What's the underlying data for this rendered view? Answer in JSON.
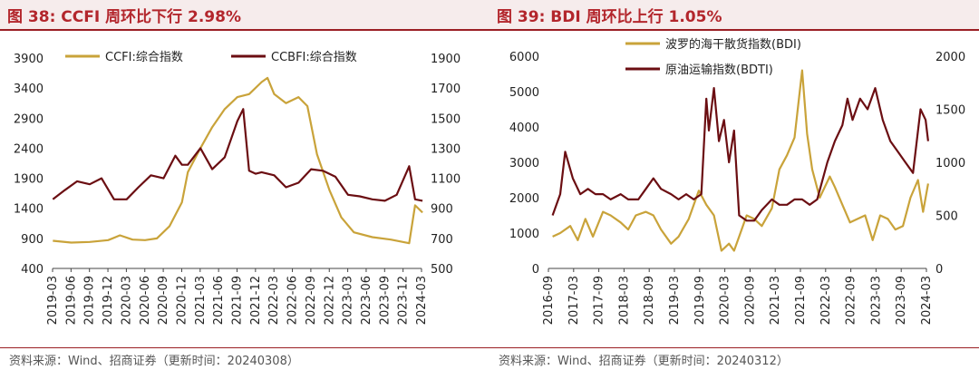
{
  "left_panel": {
    "title": "图 38:  CCFI 周环比下行 2.98%",
    "source": "资料来源：Wind、招商证券（更新时间：20240308）"
  },
  "right_panel": {
    "title": "图 39:  BDI 周环比上行 1.05%",
    "source": "资料来源：Wind、招商证券（更新时间：20240312）"
  },
  "colors": {
    "gold": "#c9a33a",
    "maroon": "#6b0e12",
    "title_red": "#b3262c"
  },
  "chart_data": [
    {
      "type": "line",
      "x_ticks": [
        "2019-03",
        "2019-06",
        "2019-09",
        "2019-12",
        "2020-03",
        "2020-06",
        "2020-09",
        "2020-12",
        "2021-03",
        "2021-06",
        "2021-09",
        "2021-12",
        "2022-03",
        "2022-06",
        "2022-09",
        "2022-12",
        "2023-03",
        "2023-06",
        "2023-09",
        "2023-12",
        "2024-03"
      ],
      "ylim_left": [
        400,
        3900
      ],
      "yticks_left": [
        400,
        900,
        1400,
        1900,
        2400,
        2900,
        3400,
        3900
      ],
      "ylim_right": [
        500,
        1900
      ],
      "yticks_right": [
        500,
        700,
        900,
        1100,
        1300,
        1500,
        1700,
        1900
      ],
      "legend_position": "top",
      "series": [
        {
          "name": "CCFI:综合指数",
          "axis": "left",
          "color": "#c9a33a",
          "x": [
            2019.17,
            2019.42,
            2019.67,
            2019.92,
            2020.08,
            2020.25,
            2020.42,
            2020.58,
            2020.75,
            2020.92,
            2021.0,
            2021.17,
            2021.33,
            2021.5,
            2021.67,
            2021.83,
            2022.0,
            2022.08,
            2022.17,
            2022.33,
            2022.5,
            2022.62,
            2022.75,
            2022.92,
            2023.08,
            2023.25,
            2023.5,
            2023.75,
            2024.0,
            2024.08,
            2024.18
          ],
          "values": [
            860,
            830,
            840,
            870,
            950,
            880,
            870,
            900,
            1100,
            1500,
            2000,
            2400,
            2750,
            3050,
            3250,
            3300,
            3500,
            3570,
            3300,
            3150,
            3250,
            3100,
            2300,
            1700,
            1250,
            1000,
            920,
            880,
            820,
            1450,
            1330
          ]
        },
        {
          "name": "CCBFI:综合指数",
          "axis": "right",
          "color": "#6b0e12",
          "x": [
            2019.17,
            2019.33,
            2019.5,
            2019.67,
            2019.83,
            2020.0,
            2020.17,
            2020.33,
            2020.5,
            2020.67,
            2020.83,
            2020.92,
            2021.0,
            2021.17,
            2021.33,
            2021.5,
            2021.67,
            2021.75,
            2021.83,
            2021.92,
            2022.0,
            2022.17,
            2022.33,
            2022.5,
            2022.67,
            2022.83,
            2023.0,
            2023.17,
            2023.33,
            2023.5,
            2023.67,
            2023.83,
            2024.0,
            2024.08,
            2024.18
          ],
          "values": [
            960,
            1020,
            1080,
            1060,
            1100,
            960,
            960,
            1040,
            1120,
            1100,
            1250,
            1190,
            1190,
            1300,
            1160,
            1240,
            1480,
            1560,
            1150,
            1130,
            1140,
            1120,
            1040,
            1070,
            1160,
            1150,
            1110,
            990,
            980,
            960,
            950,
            990,
            1180,
            960,
            950
          ]
        }
      ]
    },
    {
      "type": "line",
      "x_ticks": [
        "2016-09",
        "2017-03",
        "2017-09",
        "2018-03",
        "2018-09",
        "2019-03",
        "2019-09",
        "2020-03",
        "2020-09",
        "2021-03",
        "2021-09",
        "2022-03",
        "2022-09",
        "2023-03",
        "2023-09",
        "2024-03"
      ],
      "ylim_left": [
        0,
        6000
      ],
      "yticks_left": [
        0,
        1000,
        2000,
        3000,
        4000,
        5000,
        6000
      ],
      "ylim_right": [
        0,
        2000
      ],
      "yticks_right": [
        0,
        500,
        1000,
        1500,
        2000
      ],
      "legend_position": "top",
      "series": [
        {
          "name": "波罗的海干散货指数(BDI)",
          "axis": "left",
          "color": "#c9a33a",
          "x": [
            2016.75,
            2016.9,
            2017.1,
            2017.25,
            2017.4,
            2017.55,
            2017.75,
            2017.9,
            2018.1,
            2018.25,
            2018.4,
            2018.6,
            2018.75,
            2018.9,
            2019.1,
            2019.25,
            2019.45,
            2019.65,
            2019.8,
            2019.95,
            2020.1,
            2020.25,
            2020.35,
            2020.45,
            2020.6,
            2020.75,
            2020.9,
            2021.1,
            2021.25,
            2021.4,
            2021.55,
            2021.7,
            2021.8,
            2021.9,
            2022.05,
            2022.25,
            2022.35,
            2022.5,
            2022.65,
            2022.8,
            2022.95,
            2023.1,
            2023.25,
            2023.4,
            2023.55,
            2023.7,
            2023.85,
            2024.0,
            2024.1,
            2024.2
          ],
          "values": [
            900,
            1000,
            1200,
            800,
            1400,
            900,
            1600,
            1500,
            1300,
            1100,
            1500,
            1600,
            1500,
            1100,
            700,
            900,
            1400,
            2200,
            1800,
            1500,
            500,
            700,
            500,
            900,
            1500,
            1400,
            1200,
            1700,
            2800,
            3200,
            3700,
            5600,
            3800,
            2800,
            2000,
            2600,
            2300,
            1800,
            1300,
            1400,
            1500,
            800,
            1500,
            1400,
            1100,
            1200,
            2000,
            2500,
            1600,
            2400
          ]
        },
        {
          "name": "原油运输指数(BDTI)",
          "axis": "right",
          "color": "#6b0e12",
          "x": [
            2016.75,
            2016.9,
            2017.0,
            2017.15,
            2017.3,
            2017.45,
            2017.6,
            2017.75,
            2017.9,
            2018.1,
            2018.25,
            2018.45,
            2018.6,
            2018.75,
            2018.9,
            2019.1,
            2019.25,
            2019.4,
            2019.55,
            2019.7,
            2019.8,
            2019.85,
            2019.95,
            2020.05,
            2020.15,
            2020.25,
            2020.35,
            2020.45,
            2020.6,
            2020.75,
            2020.9,
            2021.1,
            2021.25,
            2021.4,
            2021.55,
            2021.7,
            2021.85,
            2022.0,
            2022.2,
            2022.35,
            2022.5,
            2022.6,
            2022.7,
            2022.85,
            2023.0,
            2023.15,
            2023.3,
            2023.45,
            2023.6,
            2023.75,
            2023.9,
            2024.05,
            2024.15,
            2024.2
          ],
          "values": [
            500,
            700,
            1100,
            850,
            700,
            750,
            700,
            700,
            650,
            700,
            650,
            650,
            750,
            850,
            750,
            700,
            650,
            700,
            650,
            700,
            1600,
            1300,
            1700,
            1200,
            1400,
            1000,
            1300,
            500,
            450,
            450,
            550,
            650,
            600,
            600,
            650,
            650,
            600,
            650,
            1000,
            1200,
            1350,
            1600,
            1400,
            1600,
            1500,
            1700,
            1400,
            1200,
            1100,
            1000,
            900,
            1500,
            1400,
            1200
          ]
        }
      ]
    }
  ]
}
